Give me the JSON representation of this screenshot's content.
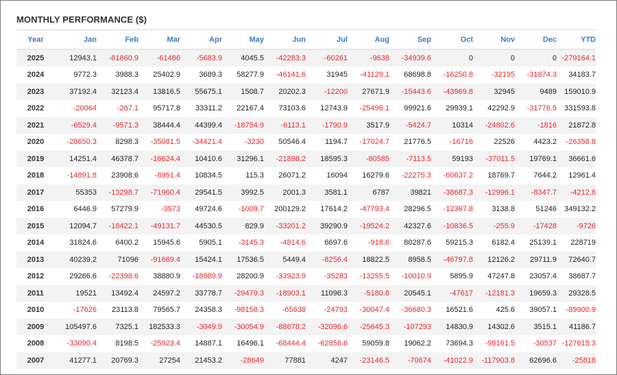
{
  "title": "MONTHLY PERFORMANCE ($)",
  "colors": {
    "negative": "#e8262c",
    "header": "#3f7bbf"
  },
  "headers": [
    "Year",
    "Jan",
    "Feb",
    "Mar",
    "Apr",
    "May",
    "Jun",
    "Jul",
    "Aug",
    "Sep",
    "Oct",
    "Nov",
    "Dec",
    "YTD"
  ],
  "rows": [
    [
      "2025",
      "12943.1",
      "-81860.9",
      "-61486",
      "-5683.9",
      "4045.5",
      "-42283.3",
      "-60261",
      "-9638",
      "-34939.6",
      "0",
      "0",
      "0",
      "-279164.1"
    ],
    [
      "2024",
      "9772.3",
      "3988.3",
      "25402.9",
      "3689.3",
      "58277.9",
      "-46141.6",
      "31945",
      "-41129.1",
      "68698.8",
      "-16250.8",
      "-32195",
      "-31874.3",
      "34183.7"
    ],
    [
      "2023",
      "37192.4",
      "32123.4",
      "13816.5",
      "55675.1",
      "1508.7",
      "20202.3",
      "-12200",
      "27671.9",
      "-15443.6",
      "-43969.8",
      "32945",
      "9489",
      "159010.9"
    ],
    [
      "2022",
      "-20064",
      "-267.1",
      "95717.8",
      "33311.2",
      "22167.4",
      "73103.6",
      "12743.9",
      "-25496.1",
      "99921.6",
      "29939.1",
      "42292.9",
      "-31776.5",
      "331593.8"
    ],
    [
      "2021",
      "-6529.4",
      "-9571.3",
      "38444.4",
      "44399.4",
      "-18754.9",
      "-6113.1",
      "-1790.9",
      "3517.9",
      "-5424.7",
      "10314",
      "-24802.6",
      "-1816",
      "21872.8"
    ],
    [
      "2020",
      "-28650.3",
      "8298.3",
      "-35081.5",
      "-34421.4",
      "-3230",
      "50546.4",
      "1194.7",
      "-17024.7",
      "21776.5",
      "-16716",
      "22526",
      "4423.2",
      "-26358.8"
    ],
    [
      "2019",
      "14251.4",
      "46378.7",
      "-16624.4",
      "10410.6",
      "31296.1",
      "-21898.2",
      "18595.3",
      "-80585",
      "-7113.5",
      "59193",
      "-37011.5",
      "19769.1",
      "36661.6"
    ],
    [
      "2018",
      "-14891.8",
      "23908.6",
      "-8951.4",
      "10834.5",
      "115.3",
      "26071.2",
      "16094",
      "16279.6",
      "-22275.3",
      "-60637.2",
      "18769.7",
      "7644.2",
      "12961.4"
    ],
    [
      "2017",
      "55353",
      "-13298.7",
      "-71960.4",
      "29541.5",
      "3992.5",
      "2001.3",
      "3581.1",
      "6787",
      "39821",
      "-38687.3",
      "-12996.1",
      "-8347.7",
      "-4212.8"
    ],
    [
      "2016",
      "6446.9",
      "57279.9",
      "-3573",
      "49724.6",
      "-1009.7",
      "200129.2",
      "17614.2",
      "-47793.4",
      "28296.5",
      "-12367.8",
      "3138.8",
      "51246",
      "349132.2"
    ],
    [
      "2015",
      "12094.7",
      "-18422.1",
      "-49131.7",
      "44530.5",
      "829.9",
      "-33201.2",
      "39290.9",
      "-19524.2",
      "42327.6",
      "-10836.5",
      "-255.9",
      "-17428",
      "-9726"
    ],
    [
      "2014",
      "31824.6",
      "6400.2",
      "15945.6",
      "5905.1",
      "-3145.3",
      "-4814.6",
      "6697.6",
      "-918.6",
      "80287.6",
      "59215.3",
      "6182.4",
      "25139.1",
      "228719"
    ],
    [
      "2013",
      "40239.2",
      "71096",
      "-91669.4",
      "15424.1",
      "17536.5",
      "5449.4",
      "-8256.4",
      "18822.5",
      "8958.5",
      "-46797.8",
      "12126.2",
      "29711.9",
      "72640.7"
    ],
    [
      "2012",
      "29266.6",
      "-22398.6",
      "38880.9",
      "-18989.9",
      "28200.9",
      "-33923.9",
      "-35283",
      "-13255.5",
      "-10010.9",
      "5895.9",
      "47247.8",
      "23057.4",
      "38687.7"
    ],
    [
      "2011",
      "19521",
      "13492.4",
      "24597.2",
      "33778.7",
      "-29479.3",
      "-18903.1",
      "11096.3",
      "-5180.8",
      "20545.1",
      "-47617",
      "-12181.3",
      "19659.3",
      "29328.5"
    ],
    [
      "2010",
      "-17626",
      "23113.8",
      "79565.7",
      "24358.3",
      "-98158.3",
      "-65638",
      "-24793",
      "-30047.4",
      "-36680.3",
      "16521.6",
      "425.6",
      "39057.1",
      "-89900.9"
    ],
    [
      "2009",
      "105497.6",
      "7325.1",
      "182533.3",
      "-3049.9",
      "-30054.9",
      "-88678.2",
      "-32096.6",
      "-25645.3",
      "-107293",
      "14830.9",
      "14302.6",
      "3515.1",
      "41186.7"
    ],
    [
      "2008",
      "-33090.4",
      "8198.5",
      "-25923.4",
      "14887.1",
      "16496.1",
      "-68444.4",
      "-62856.6",
      "59059.8",
      "19062.2",
      "73694.3",
      "-98161.5",
      "-30537",
      "-127615.3"
    ],
    [
      "2007",
      "41277.1",
      "20769.3",
      "27254",
      "21453.2",
      "-28649",
      "77881",
      "4247",
      "-23146.5",
      "-70674",
      "-41022.9",
      "-117903.8",
      "62696.6",
      "-25818"
    ]
  ]
}
